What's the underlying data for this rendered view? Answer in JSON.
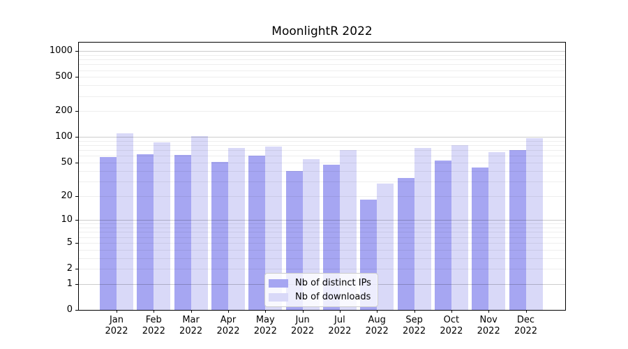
{
  "chart_data": {
    "type": "bar",
    "title": "MoonlightR 2022",
    "categories": [
      "Jan",
      "Feb",
      "Mar",
      "Apr",
      "May",
      "Jun",
      "Jul",
      "Aug",
      "Sep",
      "Oct",
      "Nov",
      "Dec"
    ],
    "year": "2022",
    "series": [
      {
        "name": "Nb of distinct IPs",
        "color": "#a6a6f2",
        "values": [
          58,
          63,
          62,
          51,
          61,
          40,
          47,
          18,
          33,
          53,
          44,
          71
        ]
      },
      {
        "name": "Nb of downloads",
        "color": "#d9d9f8",
        "values": [
          110,
          87,
          102,
          74,
          78,
          55,
          70,
          28,
          75,
          80,
          66,
          97
        ]
      }
    ],
    "yscale": "log1p",
    "y_tick_labels": [
      "0",
      "1",
      "2",
      "5",
      "10",
      "20",
      "50",
      "100",
      "200",
      "500",
      "1000"
    ],
    "ylim": [
      0,
      1255
    ],
    "grid": "on",
    "gridlines_above_bars": true,
    "legend_position": "bottom-center",
    "colors": {
      "major_grid": "#cccccc",
      "minor_grid": "#efefef",
      "frame": "#000000"
    }
  }
}
